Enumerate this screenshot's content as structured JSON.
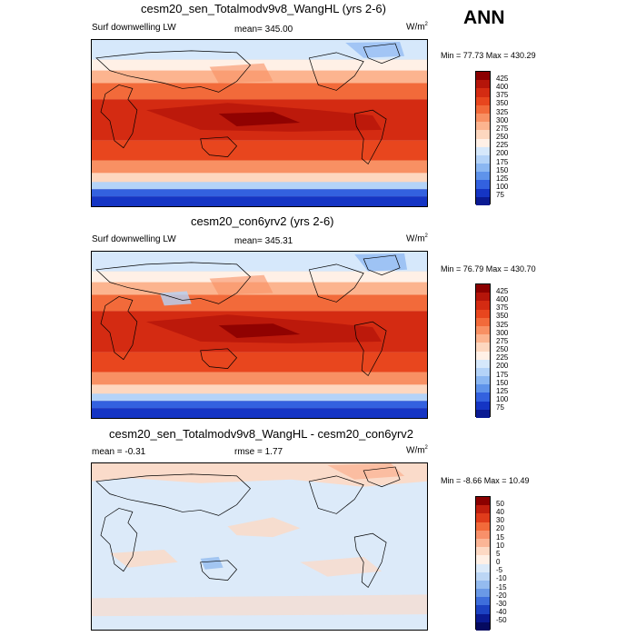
{
  "season": "ANN",
  "units": "W/m",
  "units_sup": "2",
  "panels": [
    {
      "title": "cesm20_sen_Totalmodv9v8_WangHL (yrs 2-6)",
      "left_label": "Surf downwelling LW",
      "center_label": "mean= 345.00",
      "minmax": "Min =  77.73 Max = 430.29",
      "levels": [
        "425",
        "400",
        "375",
        "350",
        "325",
        "300",
        "275",
        "250",
        "225",
        "200",
        "175",
        "150",
        "125",
        "100",
        "75"
      ]
    },
    {
      "title": "cesm20_con6yrv2 (yrs 2-6)",
      "left_label": "Surf downwelling LW",
      "center_label": "mean= 345.31",
      "minmax": "Min =  76.79 Max = 430.70",
      "levels": [
        "425",
        "400",
        "375",
        "350",
        "325",
        "300",
        "275",
        "250",
        "225",
        "200",
        "175",
        "150",
        "125",
        "100",
        "75"
      ]
    },
    {
      "title": "cesm20_sen_Totalmodv9v8_WangHL - cesm20_con6yrv2",
      "left_label": "mean =  -0.31",
      "center_label": "rmse =   1.77",
      "minmax": "Min =  -8.66 Max =  10.49",
      "levels": [
        "50",
        "40",
        "30",
        "20",
        "15",
        "10",
        "5",
        "0",
        "-5",
        "-10",
        "-15",
        "-20",
        "-30",
        "-40",
        "-50"
      ]
    }
  ],
  "colors": {
    "abs_scale": [
      "#8b0000",
      "#b5150a",
      "#d42b12",
      "#e8461e",
      "#f26a3a",
      "#f89063",
      "#fcb48f",
      "#fdd7bf",
      "#fff0e6",
      "#d6e8fb",
      "#b4d3f8",
      "#8bb7f2",
      "#5f93ea",
      "#3361df",
      "#1535c4",
      "#0a1a92"
    ],
    "diff_scale": [
      "#8b0000",
      "#c01e0e",
      "#e03c1b",
      "#f26a3a",
      "#f8906a",
      "#fbb596",
      "#fdd9c4",
      "#fff0e6",
      "#dceaf9",
      "#bcd6f5",
      "#94bbef",
      "#6a99e6",
      "#3e6edb",
      "#1c42c2",
      "#0a1a92",
      "#050a60"
    ]
  }
}
